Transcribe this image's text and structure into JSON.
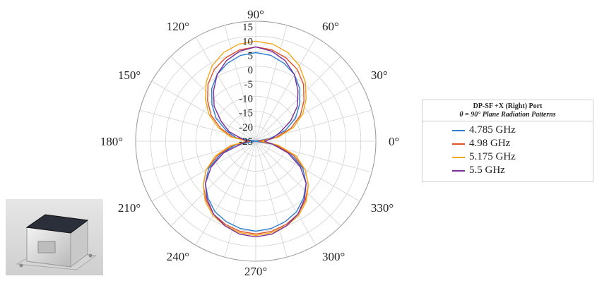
{
  "chart_data": {
    "type": "polar-line",
    "angular_ticks": [
      "0°",
      "30°",
      "60°",
      "90°",
      "120°",
      "150°",
      "180°",
      "210°",
      "240°",
      "270°",
      "300°",
      "330°"
    ],
    "radial_ticks": [
      15,
      10,
      5,
      0,
      -5,
      -10,
      -15,
      -20,
      -25
    ],
    "rlim": [
      -25,
      17
    ],
    "grid": true,
    "legend": {
      "title": "DP-SF +X (Right) Port",
      "subtitle": "θ = 90° Plane Radiation Patterns",
      "placement": "right"
    },
    "series": [
      {
        "name": "4.785 GHz",
        "color": "#2e7fcf",
        "angles": [
          0,
          10,
          20,
          30,
          40,
          50,
          60,
          70,
          80,
          90,
          100,
          110,
          120,
          130,
          140,
          150,
          160,
          170,
          180,
          190,
          200,
          210,
          220,
          230,
          240,
          250,
          260,
          270,
          280,
          290,
          300,
          310,
          320,
          330,
          340,
          350
        ],
        "values": [
          -25,
          -20,
          -14,
          -9,
          -5,
          -1,
          2,
          4,
          5.5,
          6,
          5.5,
          4,
          2,
          -1,
          -5,
          -9,
          -14,
          -18,
          -25,
          -18,
          -12,
          -6,
          -2,
          1,
          3.5,
          5,
          6,
          6.5,
          6,
          5,
          3.5,
          1,
          -2,
          -6,
          -12,
          -19
        ]
      },
      {
        "name": "4.98 GHz",
        "color": "#e0532a",
        "angles": [
          0,
          10,
          20,
          30,
          40,
          50,
          60,
          70,
          80,
          90,
          100,
          110,
          120,
          130,
          140,
          150,
          160,
          170,
          180,
          190,
          200,
          210,
          220,
          230,
          240,
          250,
          260,
          270,
          280,
          290,
          300,
          310,
          320,
          330,
          340,
          350
        ],
        "values": [
          -24,
          -18,
          -12,
          -7,
          -3,
          1,
          4,
          6,
          7.5,
          8,
          7.5,
          6,
          4,
          1,
          -3,
          -7,
          -12,
          -17,
          -23,
          -17,
          -11,
          -5,
          -1,
          2,
          4.5,
          6,
          7,
          7.5,
          7,
          6,
          4.5,
          2,
          -1,
          -5,
          -11,
          -18
        ]
      },
      {
        "name": "5.175 GHz",
        "color": "#f3a81c",
        "angles": [
          0,
          10,
          20,
          30,
          40,
          50,
          60,
          70,
          80,
          90,
          100,
          110,
          120,
          130,
          140,
          150,
          160,
          170,
          180,
          190,
          200,
          210,
          220,
          230,
          240,
          250,
          260,
          270,
          280,
          290,
          300,
          310,
          320,
          330,
          340,
          350
        ],
        "values": [
          -23,
          -17,
          -11,
          -6,
          -2,
          2,
          5.5,
          8,
          9.5,
          10,
          9.5,
          8,
          5.5,
          2,
          -2,
          -6,
          -11,
          -16,
          -22,
          -16,
          -10,
          -5,
          -1,
          2.5,
          5,
          6.5,
          7.5,
          8,
          7.5,
          6.5,
          5,
          2.5,
          -1,
          -5,
          -10,
          -17
        ]
      },
      {
        "name": "5.5 GHz",
        "color": "#7a2f9a",
        "angles": [
          0,
          10,
          20,
          30,
          40,
          50,
          60,
          70,
          80,
          90,
          100,
          110,
          120,
          130,
          140,
          150,
          160,
          170,
          180,
          190,
          200,
          210,
          220,
          230,
          240,
          250,
          260,
          270,
          280,
          290,
          300,
          310,
          320,
          330,
          340,
          350
        ],
        "values": [
          -22,
          -19,
          -16,
          -11,
          -6,
          -2,
          2,
          5,
          7,
          8,
          7,
          5,
          2,
          -2,
          -6,
          -11,
          -15,
          -20,
          -22,
          -20,
          -13,
          -7,
          -2,
          1.5,
          4.5,
          6.5,
          8,
          8.5,
          8,
          6.5,
          4.5,
          1.5,
          -2,
          -7,
          -13,
          -19
        ]
      }
    ]
  }
}
